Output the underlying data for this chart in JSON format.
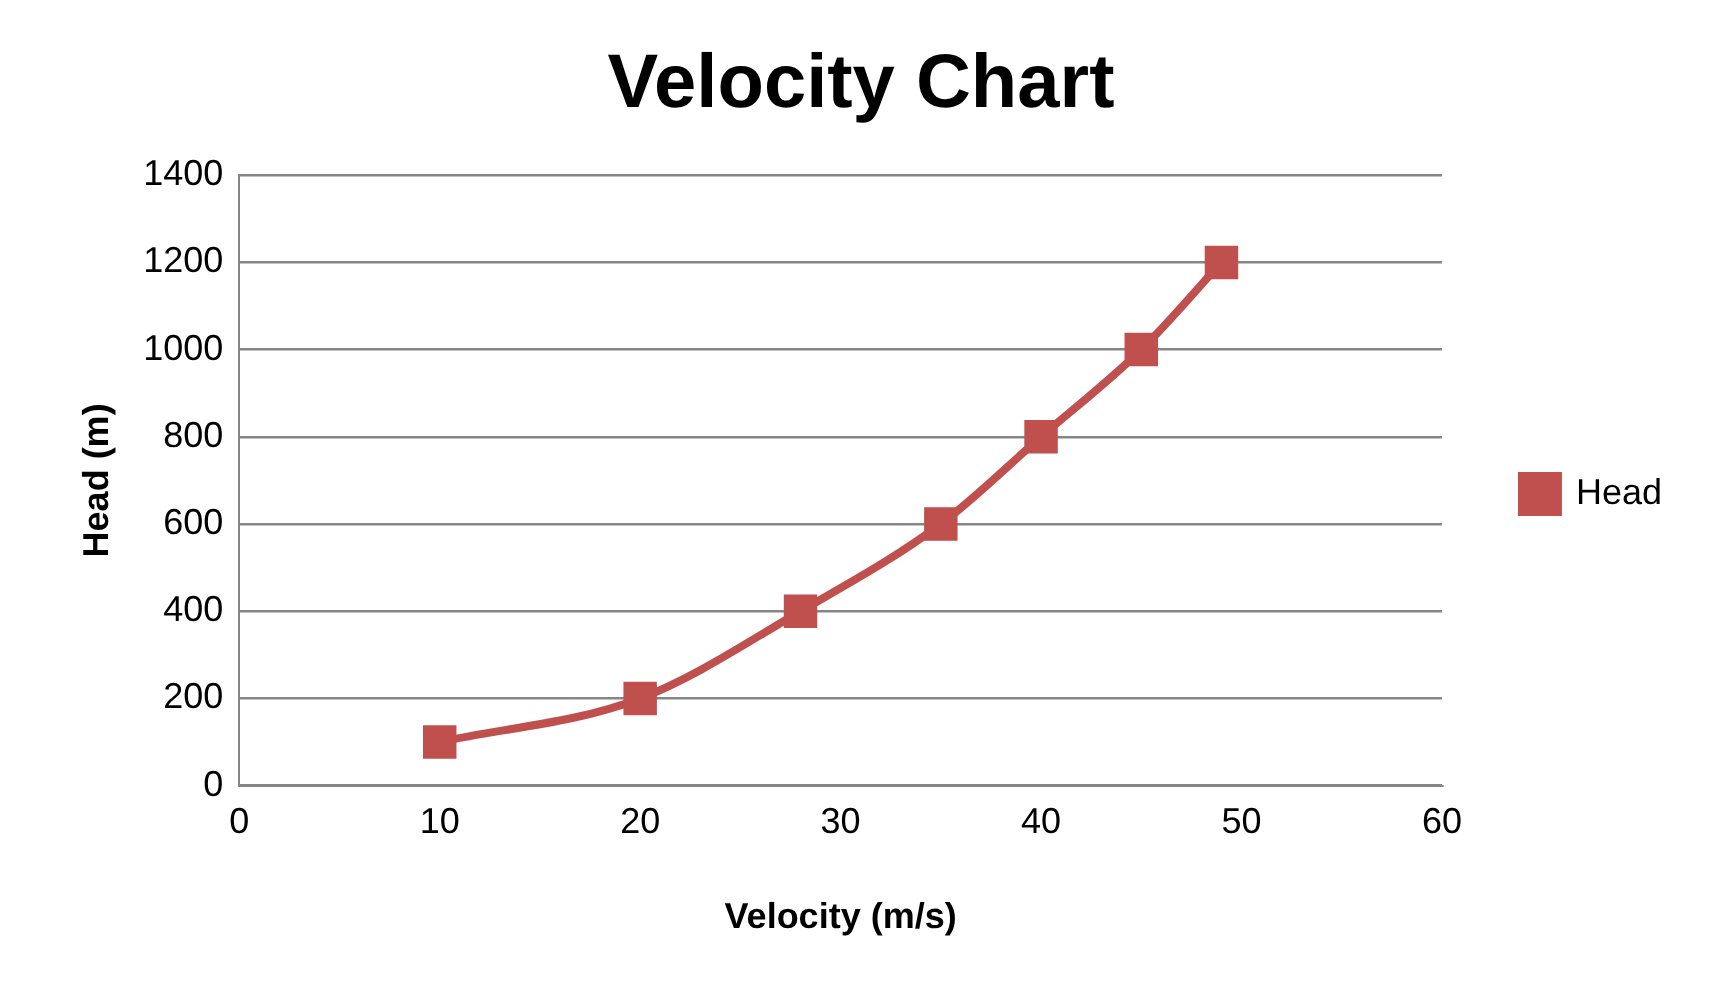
{
  "chart_data": {
    "type": "line",
    "title": "Velocity Chart",
    "xlabel": "Velocity (m/s)",
    "ylabel": "Head (m)",
    "x": [
      10,
      20,
      28,
      35,
      40,
      45,
      49
    ],
    "series": [
      {
        "name": "Head",
        "color": "#c0504d",
        "values": [
          100,
          200,
          400,
          600,
          800,
          1000,
          1200
        ]
      }
    ],
    "xlim": [
      0,
      60
    ],
    "xticks": [
      0,
      10,
      20,
      30,
      40,
      50,
      60
    ],
    "ylim": [
      0,
      1400
    ],
    "yticks": [
      0,
      200,
      400,
      600,
      800,
      1000,
      1200,
      1400
    ],
    "grid": "y",
    "legend": "right",
    "marker": "square",
    "line_style": "solid"
  }
}
